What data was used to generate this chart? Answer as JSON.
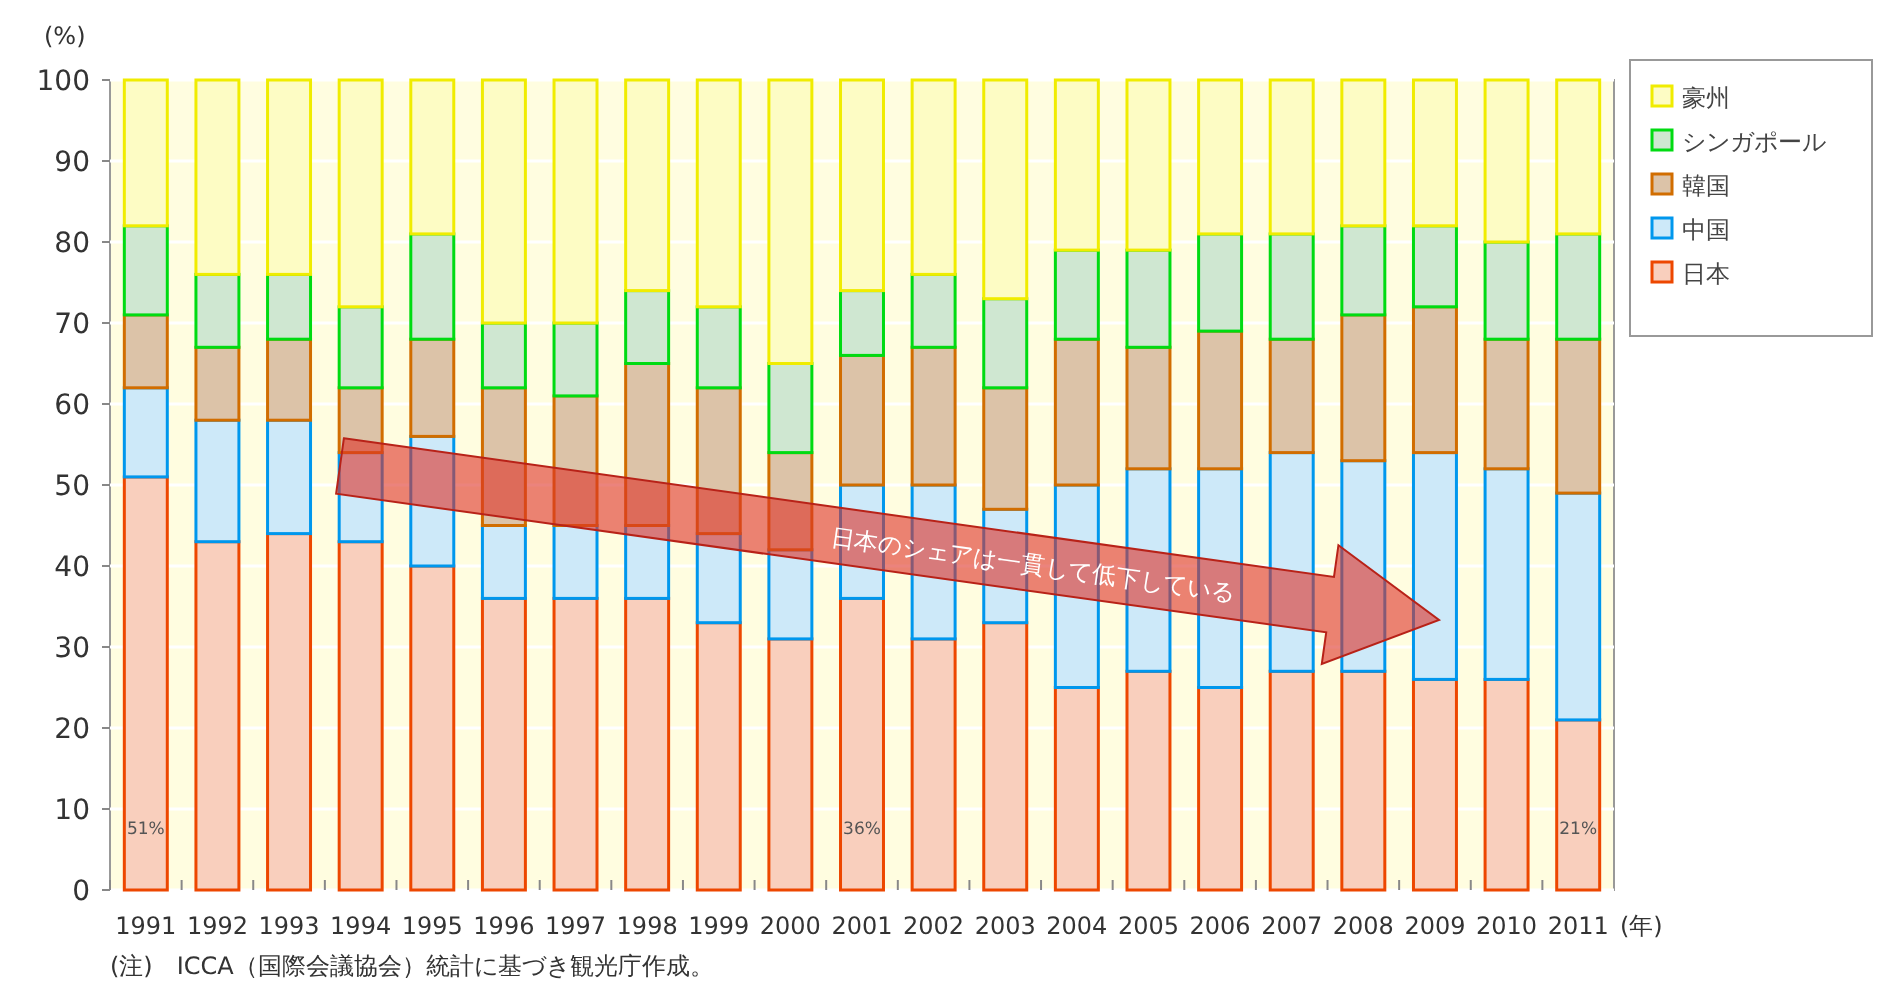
{
  "chart_data": {
    "type": "bar",
    "stacked": true,
    "ylabel": "(%)",
    "xlabel": "(年)",
    "categories": [
      "1991",
      "1992",
      "1993",
      "1994",
      "1995",
      "1996",
      "1997",
      "1998",
      "1999",
      "2000",
      "2001",
      "2002",
      "2003",
      "2004",
      "2005",
      "2006",
      "2007",
      "2008",
      "2009",
      "2010",
      "2011"
    ],
    "series": [
      {
        "name": "日本",
        "color": "#f9cfbd",
        "values": [
          51,
          43,
          44,
          43,
          40,
          36,
          36,
          36,
          33,
          31,
          36,
          31,
          33,
          25,
          27,
          25,
          27,
          27,
          26,
          26,
          21
        ],
        "value_labels": [
          "51%",
          null,
          null,
          null,
          null,
          null,
          null,
          null,
          null,
          null,
          "36%",
          null,
          null,
          null,
          null,
          null,
          null,
          null,
          null,
          null,
          "21%"
        ]
      },
      {
        "name": "中国",
        "color": "#cde9f9",
        "values": [
          11,
          15,
          14,
          11,
          16,
          9,
          9,
          9,
          11,
          11,
          14,
          19,
          14,
          25,
          25,
          27,
          27,
          26,
          28,
          26,
          28
        ]
      },
      {
        "name": "韓国",
        "color": "#dcc3a8",
        "values": [
          9,
          9,
          10,
          8,
          12,
          17,
          16,
          20,
          18,
          12,
          16,
          17,
          15,
          18,
          15,
          17,
          14,
          18,
          18,
          16,
          19
        ]
      },
      {
        "name": "シンガポール",
        "color": "#cfe7d1",
        "values": [
          11,
          9,
          8,
          10,
          13,
          8,
          9,
          9,
          10,
          11,
          8,
          9,
          11,
          11,
          12,
          12,
          13,
          11,
          10,
          12,
          13
        ]
      },
      {
        "name": "豪州",
        "color": "#fdfcc4",
        "values": [
          18,
          24,
          24,
          28,
          19,
          30,
          30,
          26,
          28,
          35,
          26,
          24,
          27,
          21,
          21,
          19,
          19,
          18,
          18,
          20,
          19
        ]
      }
    ],
    "ylim": [
      0,
      100
    ],
    "yticks": [
      0,
      10,
      20,
      30,
      40,
      50,
      60,
      70,
      80,
      90,
      100
    ],
    "grid": "y",
    "legend": "top right",
    "annotations": [
      "日本のシェアは一貫して低下している",
      "(注)　ICCA（国際会議協会）統計に基づき観光庁作成。"
    ]
  }
}
